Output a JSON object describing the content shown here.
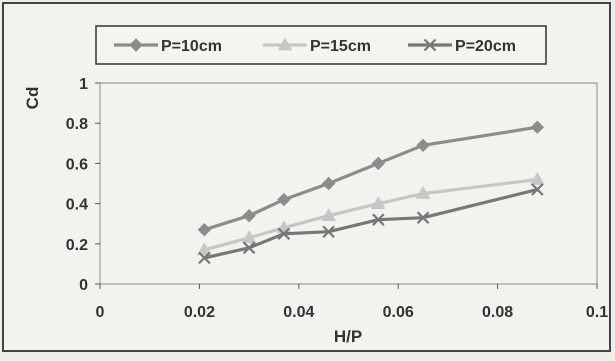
{
  "chart_data": {
    "type": "line",
    "title": "",
    "xlabel": "H/P",
    "ylabel": "Cd",
    "xlim": [
      0,
      0.1
    ],
    "ylim": [
      0,
      1
    ],
    "x_ticks": [
      "0",
      "0.02",
      "0.04",
      "0.06",
      "0.08",
      "0.1"
    ],
    "y_ticks": [
      "0",
      "0.2",
      "0.4",
      "0.6",
      "0.8",
      "1"
    ],
    "x_tick_values": [
      0,
      0.02,
      0.04,
      0.06,
      0.08,
      0.1
    ],
    "y_tick_values": [
      0,
      0.2,
      0.4,
      0.6,
      0.8,
      1
    ],
    "grid": false,
    "legend_position": "top",
    "series": [
      {
        "name": "P=10cm",
        "color": "#8c8c8c",
        "marker": "diamond",
        "points": [
          [
            0.021,
            0.27
          ],
          [
            0.03,
            0.34
          ],
          [
            0.037,
            0.42
          ],
          [
            0.046,
            0.5
          ],
          [
            0.056,
            0.6
          ],
          [
            0.065,
            0.69
          ],
          [
            0.088,
            0.78
          ]
        ]
      },
      {
        "name": "P=15cm",
        "color": "#c6c6c6",
        "marker": "triangle",
        "points": [
          [
            0.021,
            0.17
          ],
          [
            0.03,
            0.23
          ],
          [
            0.037,
            0.28
          ],
          [
            0.046,
            0.34
          ],
          [
            0.056,
            0.4
          ],
          [
            0.065,
            0.45
          ],
          [
            0.088,
            0.52
          ]
        ]
      },
      {
        "name": "P=20cm",
        "color": "#777777",
        "marker": "x",
        "points": [
          [
            0.021,
            0.13
          ],
          [
            0.03,
            0.18
          ],
          [
            0.037,
            0.25
          ],
          [
            0.046,
            0.26
          ],
          [
            0.056,
            0.32
          ],
          [
            0.065,
            0.33
          ],
          [
            0.088,
            0.47
          ]
        ]
      }
    ]
  }
}
